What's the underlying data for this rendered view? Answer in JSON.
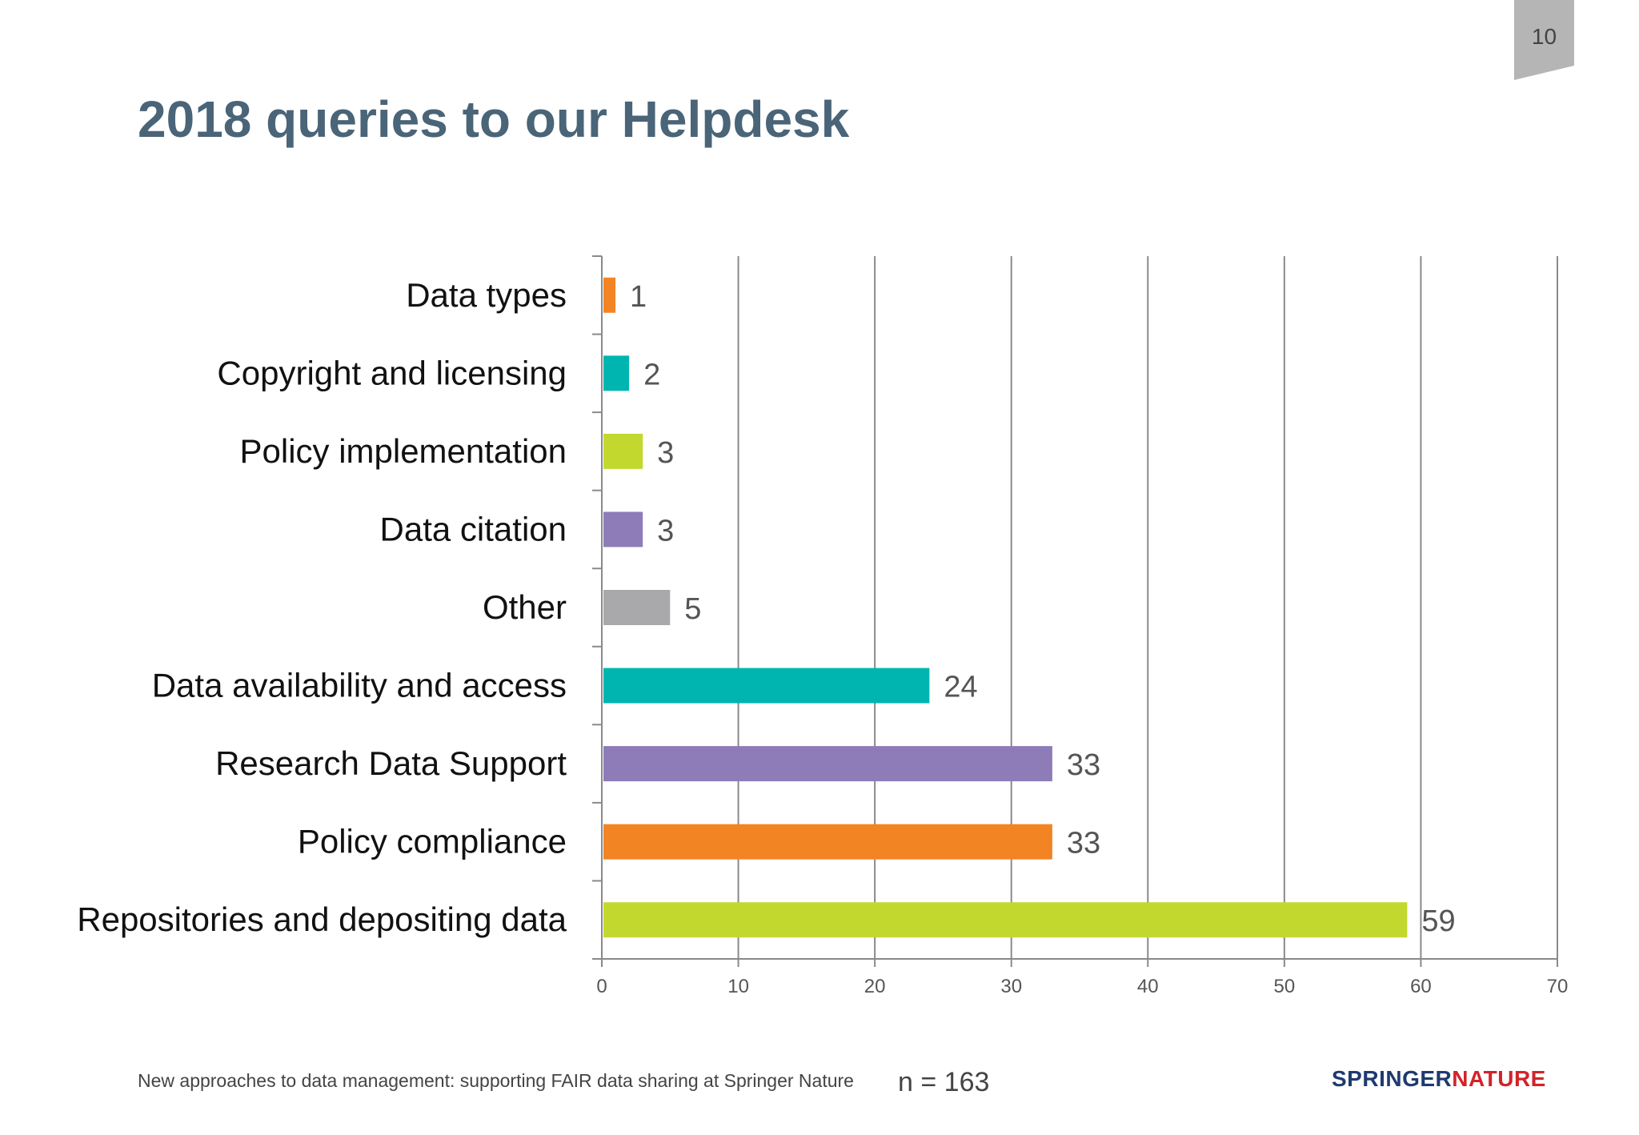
{
  "slide": {
    "page_number": "10",
    "title": "2018 queries to our Helpdesk",
    "footer_text": "New approaches to data management: supporting FAIR data sharing at Springer Nature",
    "n_label": "n = 163",
    "brand": {
      "part1": "SPRINGER",
      "part2": "NATURE"
    },
    "colors": {
      "title": "#4a6478",
      "brand_dark": "#1f3a6e",
      "brand_red": "#d2232a"
    }
  },
  "chart_data": {
    "type": "bar",
    "orientation": "horizontal",
    "title": "",
    "xlabel": "",
    "ylabel": "",
    "xlim": [
      0,
      70
    ],
    "x_ticks": [
      0,
      10,
      20,
      30,
      40,
      50,
      60,
      70
    ],
    "grid": "vertical",
    "legend": "none",
    "categories": [
      "Data types",
      "Copyright and licensing",
      "Policy implementation",
      "Data citation",
      "Other",
      "Data availability and access",
      "Research Data Support",
      "Policy compliance",
      "Repositories and depositing data"
    ],
    "values": [
      1,
      2,
      3,
      3,
      5,
      24,
      33,
      33,
      59
    ],
    "colors": [
      "#f28424",
      "#00b5b0",
      "#c3d82e",
      "#8e7cb8",
      "#a9a8aa",
      "#00b5b0",
      "#8e7cb8",
      "#f28424",
      "#c3d82e"
    ]
  }
}
